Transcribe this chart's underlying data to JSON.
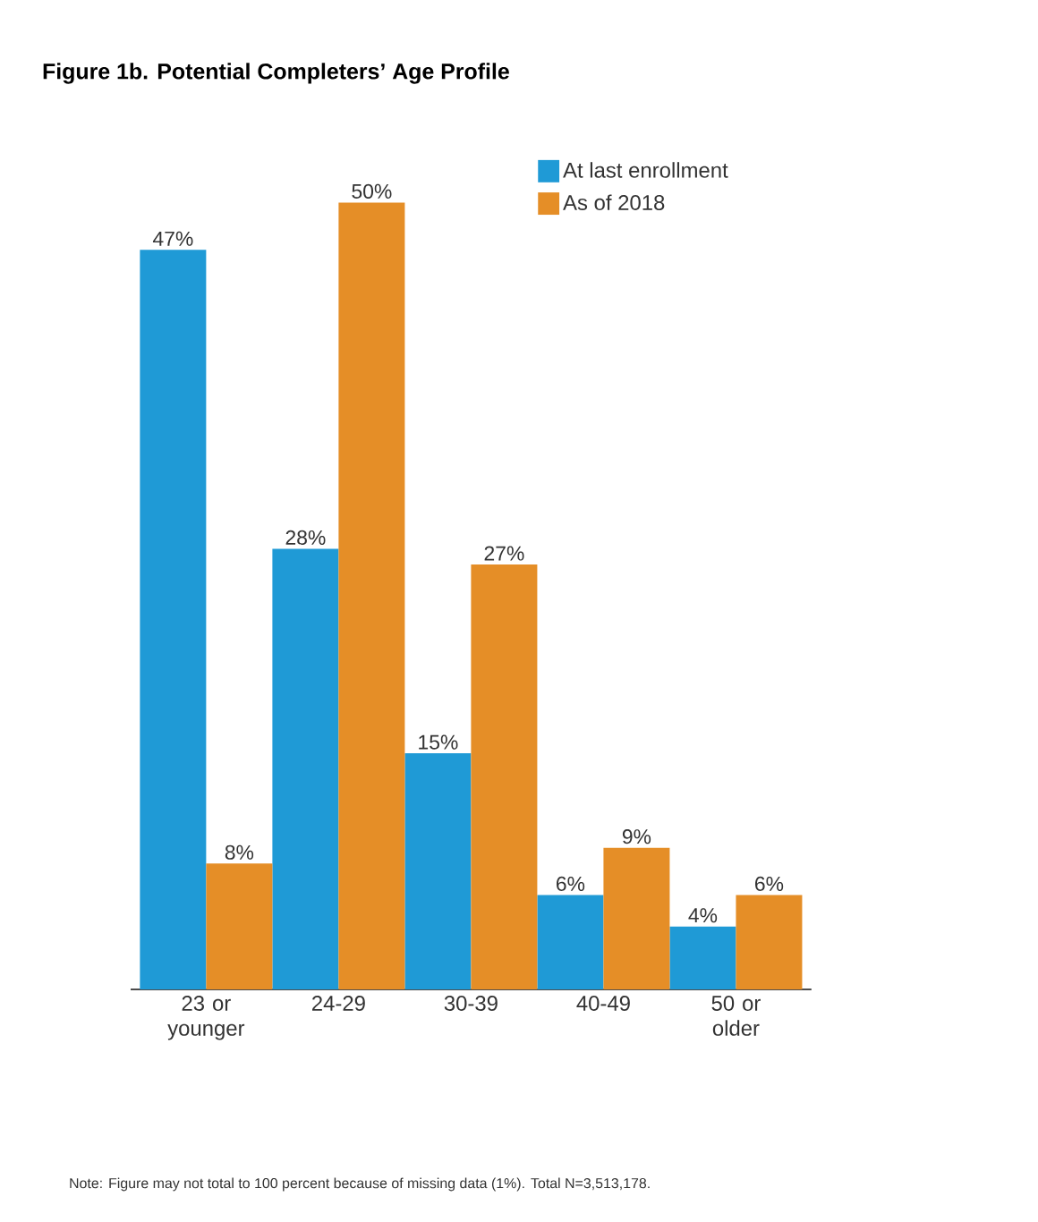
{
  "chart_data": {
    "type": "bar",
    "title": "Figure 1b. Potential Completers’ Age Profile",
    "categories": [
      "23 or younger",
      "24-29",
      "30-39",
      "40-49",
      "50 or older"
    ],
    "series": [
      {
        "name": "At last enrollment",
        "color": "#1f9ad6",
        "values": [
          47,
          28,
          15,
          6,
          4
        ],
        "value_labels": [
          "47%",
          "28%",
          "15%",
          "6%",
          "4%"
        ]
      },
      {
        "name": "As of 2018",
        "color": "#e58e27",
        "values": [
          8,
          50,
          27,
          9,
          6
        ],
        "value_labels": [
          "8%",
          "50%",
          "27%",
          "9%",
          "6%"
        ]
      }
    ],
    "legend": "top right",
    "annotations": [
      "Note: Figure may not total to 100 percent because of missing data (1%). Total N=3,513,178."
    ]
  }
}
